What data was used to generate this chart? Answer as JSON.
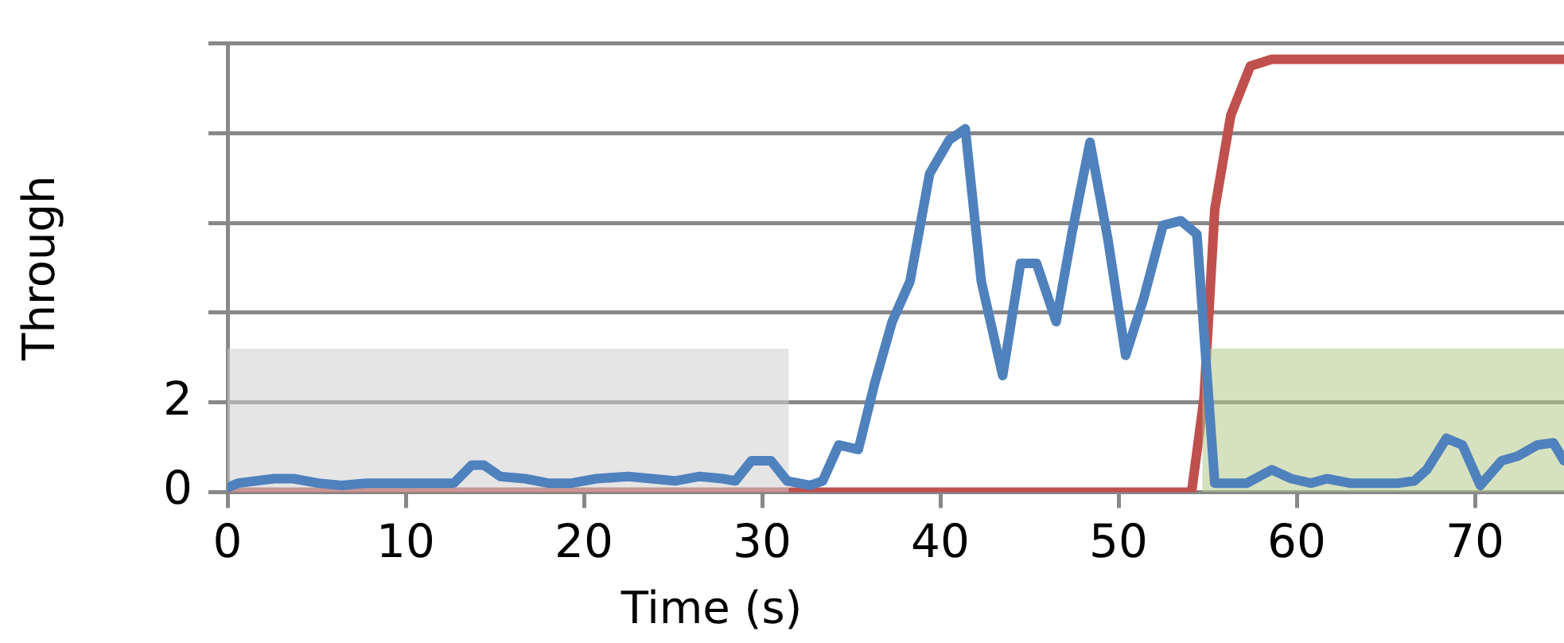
{
  "chart_data": {
    "type": "line",
    "xlabel": "Time (s)",
    "ylabel": "Through",
    "xlim": [
      0,
      75
    ],
    "xticks": [
      0,
      10,
      20,
      30,
      40,
      50,
      60,
      70
    ],
    "ylim": [
      0,
      10
    ],
    "yticks": [
      0,
      2,
      {
        "value": 4,
        "label": null
      },
      {
        "value": 6,
        "label": null
      },
      {
        "value": 8,
        "label": null
      },
      {
        "value": 10,
        "label": null
      }
    ],
    "grid": "y",
    "marker": "none",
    "series": [
      {
        "type": "line",
        "color": "#4f81bd",
        "x": [
          0,
          0.6,
          2.6,
          3.7,
          5.1,
          6.4,
          7.8,
          12.7,
          13.7,
          14.4,
          15.3,
          16.7,
          18,
          19.3,
          20.7,
          22.5,
          23.8,
          25.1,
          26.5,
          27.8,
          28.5,
          29.4,
          30.5,
          31.4,
          32.7,
          33.4,
          34.3,
          35.4,
          36.3,
          37.3,
          38.3,
          39.4,
          40.5,
          41.4,
          42.3,
          43.5,
          44.5,
          45.4,
          46.5,
          47.4,
          48.4,
          49.4,
          50.4,
          51.4,
          52.5,
          53.5,
          54.4,
          55.4,
          57.2,
          58.6,
          59.7,
          60.8,
          61.7,
          63,
          65.7,
          66.6,
          67.3,
          68.4,
          69.3,
          70.3,
          71.5,
          72.4,
          73.5,
          74.4,
          75
        ],
        "values": [
          0.1,
          0.2,
          0.3,
          0.3,
          0.2,
          0.15,
          0.2,
          0.2,
          0.6,
          0.6,
          0.35,
          0.3,
          0.2,
          0.2,
          0.3,
          0.35,
          0.3,
          0.25,
          0.35,
          0.3,
          0.25,
          0.7,
          0.7,
          0.25,
          0.15,
          0.25,
          1.05,
          0.95,
          2.4,
          3.8,
          4.7,
          7.1,
          7.85,
          8.1,
          4.7,
          2.6,
          5.1,
          5.1,
          3.8,
          5.8,
          7.8,
          5.65,
          3.05,
          4.3,
          5.95,
          6.05,
          5.75,
          0.2,
          0.2,
          0.5,
          0.3,
          0.2,
          0.3,
          0.2,
          0.2,
          0.25,
          0.5,
          1.2,
          1.05,
          0.15,
          0.7,
          0.8,
          1.05,
          1.1,
          0.7
        ]
      },
      {
        "type": "area",
        "color": "#d0d0d0",
        "x": [
          0,
          31.5
        ],
        "values": [
          3.2,
          3.2
        ]
      },
      {
        "type": "area",
        "color": "#b5c98a",
        "x": [
          54.7,
          75
        ],
        "values": [
          3.2,
          3.2
        ]
      },
      {
        "type": "line",
        "color": "#c0504d",
        "x": [
          0,
          54.1,
          54.8,
          55.4,
          56.3,
          57.4,
          58.6,
          75
        ],
        "values": [
          0,
          0,
          2.1,
          6.3,
          8.4,
          9.5,
          9.65,
          9.65
        ]
      }
    ]
  }
}
